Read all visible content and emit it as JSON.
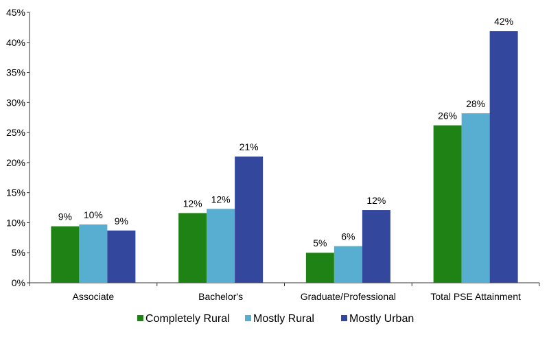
{
  "chart_data": {
    "type": "bar",
    "title": "",
    "xlabel": "",
    "ylabel": "",
    "ylim": [
      0,
      45
    ],
    "y_ticks": [
      "0%",
      "5%",
      "10%",
      "15%",
      "20%",
      "25%",
      "30%",
      "35%",
      "40%",
      "45%"
    ],
    "categories": [
      "Associate",
      "Bachelor's",
      "Graduate/Professional",
      "Total PSE Attainment"
    ],
    "series": [
      {
        "name": "Completely Rural",
        "color": "#1e8214",
        "values": [
          9.4,
          11.6,
          5.0,
          26.2
        ],
        "labels": [
          "9%",
          "12%",
          "5%",
          "26%"
        ]
      },
      {
        "name": "Mostly Rural",
        "color": "#58aed0",
        "values": [
          9.7,
          12.3,
          6.1,
          28.2
        ],
        "labels": [
          "10%",
          "12%",
          "6%",
          "28%"
        ]
      },
      {
        "name": "Mostly Urban",
        "color": "#33479d",
        "values": [
          8.7,
          21.0,
          12.1,
          41.9
        ],
        "labels": [
          "9%",
          "21%",
          "12%",
          "42%"
        ]
      }
    ],
    "grid": false,
    "legend_position": "bottom"
  }
}
